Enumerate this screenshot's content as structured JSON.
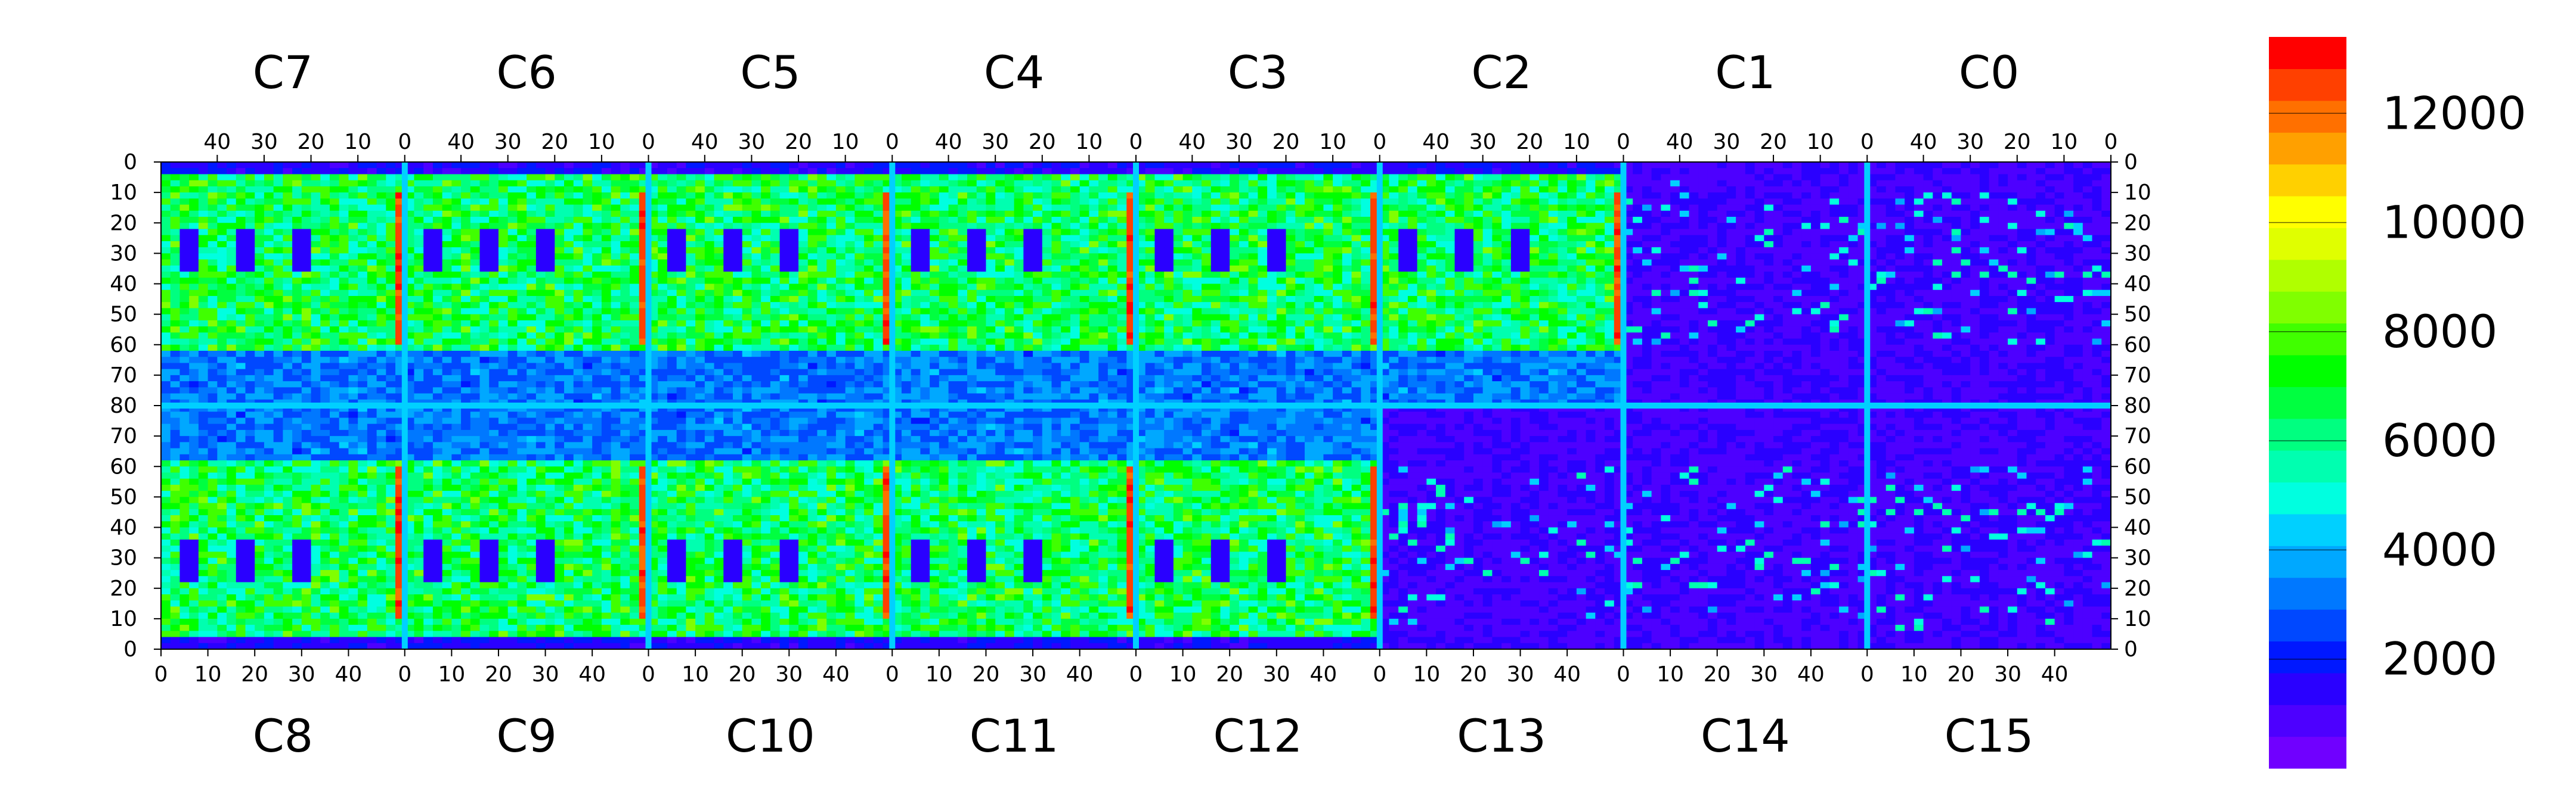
{
  "chart_data": {
    "type": "heatmap",
    "title": "",
    "xlabel": "",
    "ylabel": "",
    "top_chips": [
      "C7",
      "C6",
      "C5",
      "C4",
      "C3",
      "C2",
      "C1",
      "C0"
    ],
    "bottom_chips": [
      "C8",
      "C9",
      "C10",
      "C11",
      "C12",
      "C13",
      "C14",
      "C15"
    ],
    "top_x_ticks": [
      "40",
      "30",
      "20",
      "10",
      "0"
    ],
    "bottom_x_ticks": [
      "0",
      "10",
      "20",
      "30",
      "40"
    ],
    "y_ticks_upper": [
      "0",
      "10",
      "20",
      "30",
      "40",
      "50",
      "60",
      "70",
      "80"
    ],
    "y_ticks_lower": [
      "70",
      "60",
      "50",
      "40",
      "30",
      "20",
      "10",
      "0"
    ],
    "chip_columns": 52,
    "chip_rows": 80,
    "colorbar": {
      "ticks": [
        "12000",
        "10000",
        "8000",
        "6000",
        "4000",
        "2000"
      ],
      "tick_values": [
        12000,
        10000,
        8000,
        6000,
        4000,
        2000
      ],
      "zmin": 0,
      "zmax": 13400,
      "colors": [
        "#7000ff",
        "#4d00ff",
        "#2a00ff",
        "#0018ff",
        "#0048ff",
        "#0078ff",
        "#00a8ff",
        "#00d0ff",
        "#00ffe0",
        "#00ffb0",
        "#00ff80",
        "#00ff40",
        "#00ff00",
        "#40ff00",
        "#80ff00",
        "#b0ff00",
        "#e0ff00",
        "#ffff00",
        "#ffd000",
        "#ffa000",
        "#ff7000",
        "#ff4000",
        "#ff0000"
      ]
    },
    "region_levels": {
      "background": 1000,
      "active_fill": 6500,
      "column_edge": 12500,
      "bump_pads": 1200,
      "cold_chips": [
        "C13",
        "C14",
        "C15",
        "C0",
        "C1"
      ],
      "cold_level": 1100
    }
  }
}
